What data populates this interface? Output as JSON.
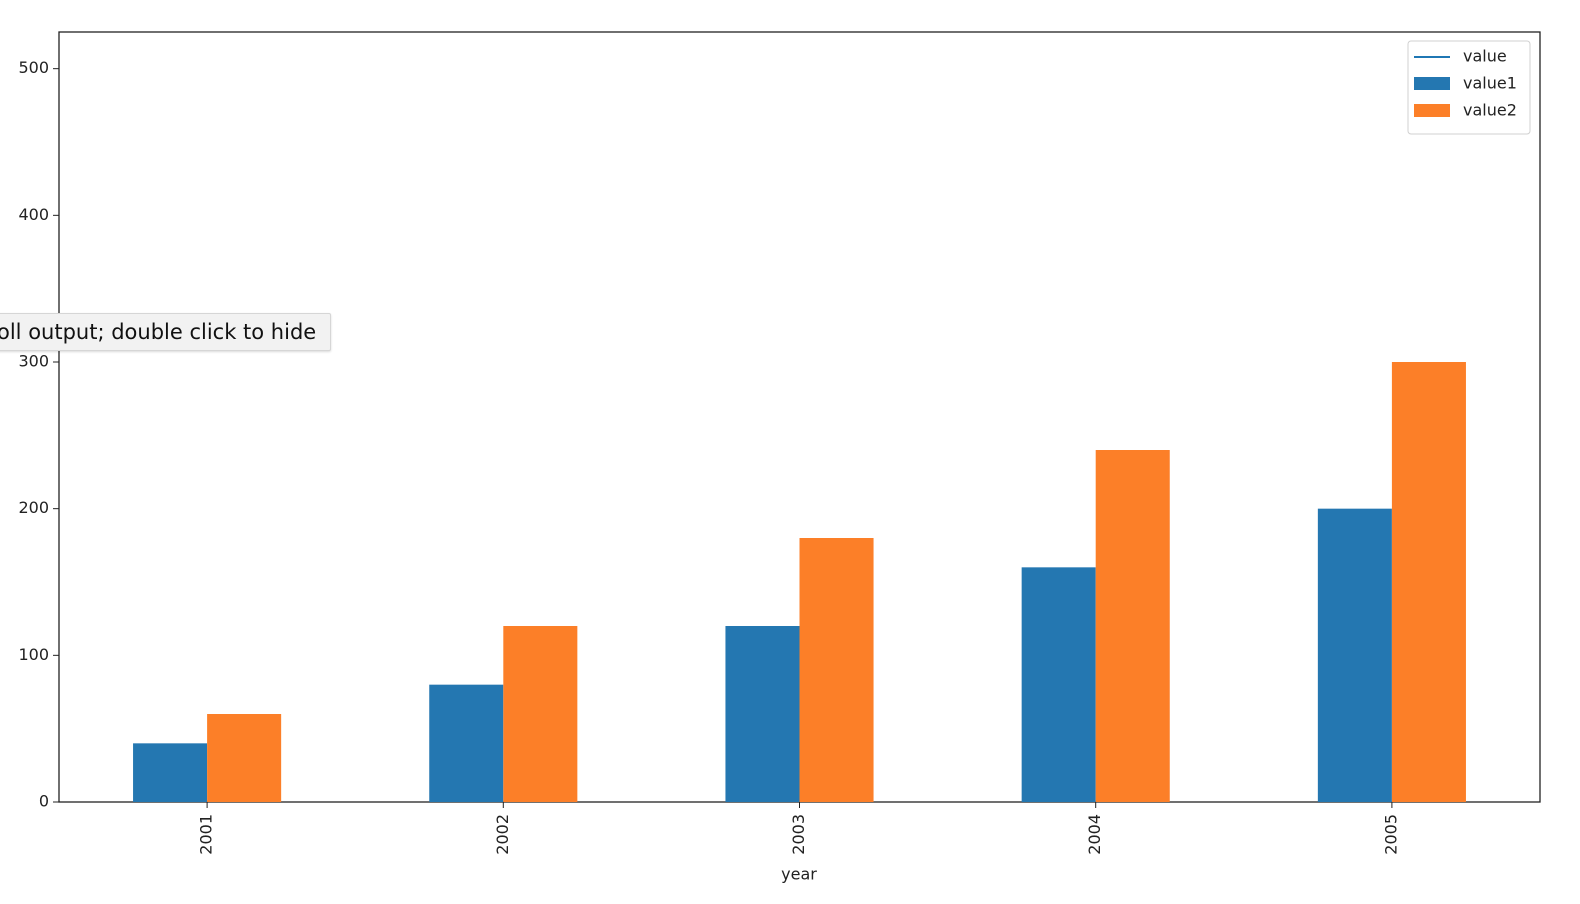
{
  "chart_data": {
    "type": "bar",
    "xlabel": "year",
    "categories": [
      "2001",
      "2002",
      "2003",
      "2004",
      "2005"
    ],
    "series": [
      {
        "name": "value",
        "color": "#1f77b4",
        "kind": "line",
        "values": [
          null,
          null,
          null,
          null,
          null
        ]
      },
      {
        "name": "value1",
        "color": "#2477b1",
        "kind": "bar",
        "values": [
          40,
          80,
          120,
          160,
          200
        ]
      },
      {
        "name": "value2",
        "color": "#fc7f28",
        "kind": "bar",
        "values": [
          60,
          120,
          180,
          240,
          300
        ]
      }
    ],
    "ylim": [
      0,
      525
    ],
    "yticks": [
      0,
      100,
      200,
      300,
      400,
      500
    ],
    "grid": false,
    "legend": "upper-right"
  },
  "tooltip": {
    "text": "oll output; double click to hide"
  }
}
